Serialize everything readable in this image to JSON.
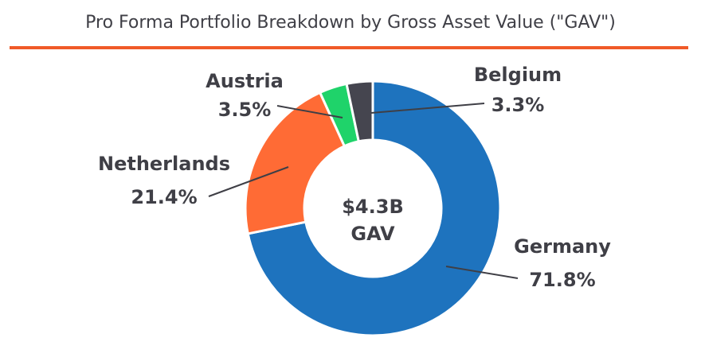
{
  "chart_data": {
    "type": "pie",
    "variant": "donut",
    "title": "Pro Forma Portfolio Breakdown by Gross Asset Value (\"GAV\")",
    "center_label": [
      "$4.3B",
      "GAV"
    ],
    "slices": [
      {
        "name": "Germany",
        "value": 71.8,
        "label": "71.8%",
        "color": "#1e73be"
      },
      {
        "name": "Netherlands",
        "value": 21.4,
        "label": "21.4%",
        "color": "#ff6b35"
      },
      {
        "name": "Austria",
        "value": 3.5,
        "label": "3.5%",
        "color": "#1fd36a"
      },
      {
        "name": "Belgium",
        "value": 3.3,
        "label": "3.3%",
        "color": "#45454f"
      }
    ],
    "start_angle_deg": 0,
    "direction": "clockwise",
    "separator_color": "#ffffff",
    "title_rule_color": "#f05a28"
  }
}
